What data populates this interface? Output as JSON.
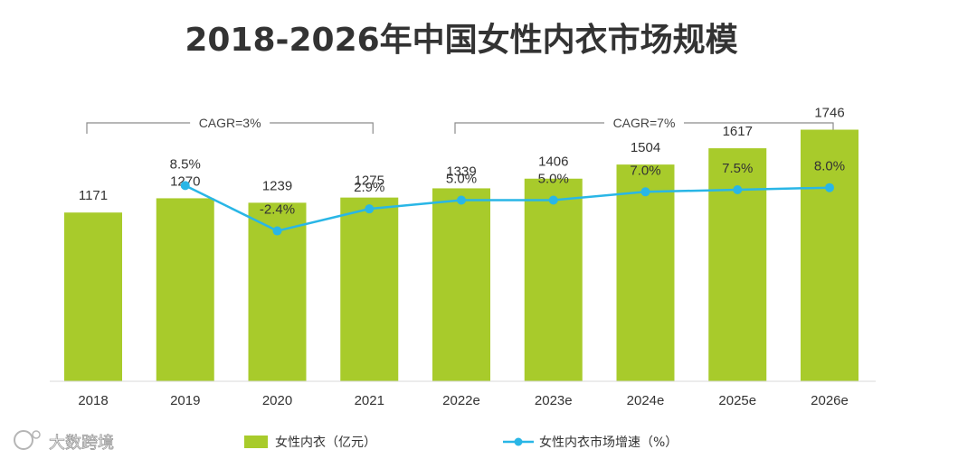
{
  "chart_data": {
    "type": "bar",
    "title": "2018-2026年中国女性内衣市场规模",
    "categories": [
      "2018",
      "2019",
      "2020",
      "2021",
      "2022e",
      "2023e",
      "2024e",
      "2025e",
      "2026e"
    ],
    "series": [
      {
        "name": "女性内衣（亿元）",
        "kind": "bar",
        "values": [
          1171,
          1270,
          1239,
          1275,
          1339,
          1406,
          1504,
          1617,
          1746
        ],
        "labels": [
          "1171",
          "1270",
          "1239",
          "1275",
          "1339",
          "1406",
          "1504",
          "1617",
          "1746"
        ]
      },
      {
        "name": "女性内衣市场增速（%）",
        "kind": "line",
        "values": [
          null,
          8.5,
          -2.4,
          2.9,
          5.0,
          5.0,
          7.0,
          7.5,
          8.0
        ],
        "labels": [
          "",
          "8.5%",
          "-2.4%",
          "2.9%",
          "5.0%",
          "5.0%",
          "7.0%",
          "7.5%",
          "8.0%"
        ]
      }
    ],
    "annotations": [
      {
        "text": "CAGR=3%",
        "from": "2018",
        "to": "2021"
      },
      {
        "text": "CAGR=7%",
        "from": "2022e",
        "to": "2026e"
      }
    ],
    "xlabel": "",
    "ylabel": "",
    "ylim": [
      0,
      2000
    ],
    "line_ylim": [
      -25,
      20
    ],
    "legend_position": "bottom",
    "grid": false
  },
  "colors": {
    "bar": "#a8cb2b",
    "line": "#29b6e6",
    "text": "#333333",
    "bracket": "#8c8c8c"
  },
  "watermark": {
    "text": "大数跨境"
  }
}
